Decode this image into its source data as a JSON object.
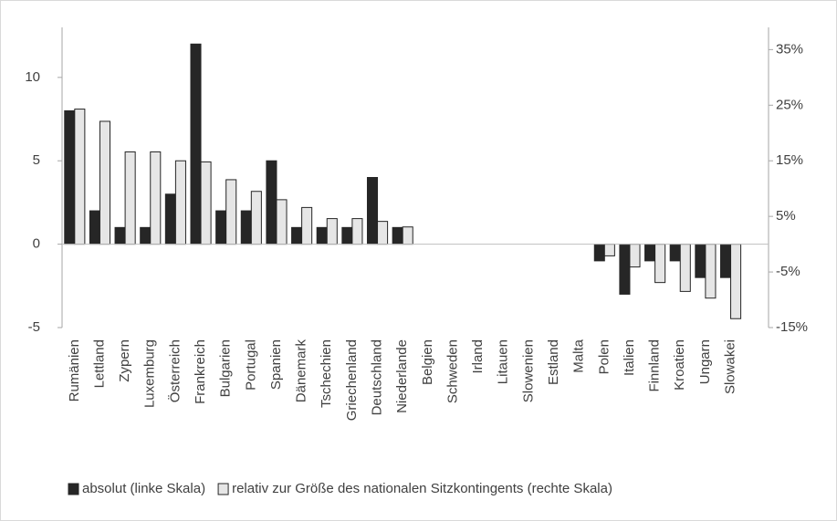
{
  "chart_data": {
    "type": "bar",
    "categories": [
      "Rumänien",
      "Lettland",
      "Zypern",
      "Luxemburg",
      "Österreich",
      "Frankreich",
      "Bulgarien",
      "Portugal",
      "Spanien",
      "Dänemark",
      "Tschechien",
      "Griechenland",
      "Deutschland",
      "Niederlande",
      "Belgien",
      "Schweden",
      "Irland",
      "Litauen",
      "Slowenien",
      "Estland",
      "Malta",
      "Polen",
      "Italien",
      "Finnland",
      "Kroatien",
      "Ungarn",
      "Slowakei"
    ],
    "series": [
      {
        "name": "absolut (linke Skala)",
        "color": "#262626",
        "values": [
          8,
          2,
          1,
          1,
          3,
          12,
          2,
          2,
          5,
          1,
          1,
          1,
          4,
          1,
          0,
          0,
          0,
          0,
          0,
          0,
          0,
          -1,
          -3,
          -1,
          -1,
          -2,
          -2
        ]
      },
      {
        "name": "relativ zur Größe des nationalen Sitzkontingents (rechte Skala)",
        "color": "#e6e6e6",
        "axis": "y2",
        "values": [
          24.3,
          22.1,
          16.6,
          16.6,
          15,
          14.8,
          11.6,
          9.5,
          8,
          6.6,
          4.6,
          4.6,
          4.1,
          3.1,
          0,
          0,
          0,
          0,
          0,
          0,
          0,
          -2.1,
          -4.1,
          -6.9,
          -8.5,
          -9.7,
          -13.4
        ]
      }
    ],
    "ylim": [
      -5,
      13
    ],
    "yticks": [
      -5,
      0,
      5,
      10
    ],
    "y2lim": [
      -15,
      39
    ],
    "y2ticks": [
      {
        "value": -15,
        "label": "-15%"
      },
      {
        "value": -5,
        "label": "-5%"
      },
      {
        "value": 5,
        "label": "5%"
      },
      {
        "value": 15,
        "label": "15%"
      },
      {
        "value": 25,
        "label": "25%"
      },
      {
        "value": 35,
        "label": "35%"
      }
    ],
    "legend": "bottom"
  }
}
